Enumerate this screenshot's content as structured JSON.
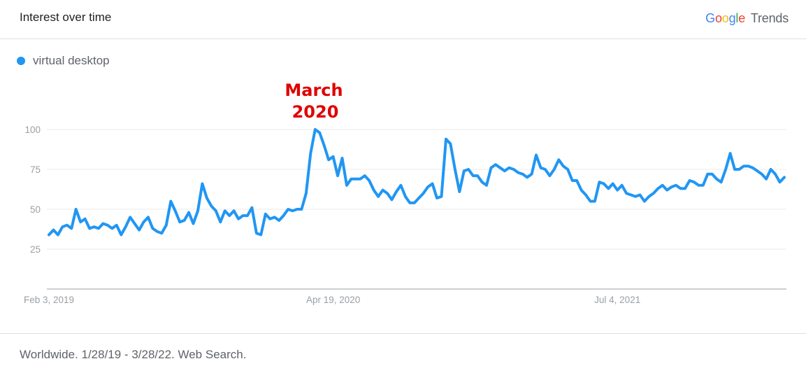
{
  "header": {
    "title": "Interest over time",
    "brand_google": [
      "G",
      "o",
      "o",
      "g",
      "l",
      "e"
    ],
    "brand_colors": [
      "#4285f4",
      "#ea4335",
      "#fbbc05",
      "#4285f4",
      "#34a853",
      "#ea4335"
    ],
    "brand_trends": "Trends"
  },
  "legend": {
    "label": "virtual desktop",
    "color": "#2196f3"
  },
  "annotation": {
    "line1": "March",
    "line2": "2020",
    "color": "#e00000"
  },
  "footer": {
    "text": "Worldwide. 1/28/19 - 3/28/22. Web Search."
  },
  "chart_data": {
    "type": "line",
    "xlabel": "",
    "ylabel": "",
    "ylim": [
      0,
      100
    ],
    "y_ticks": [
      25,
      50,
      75,
      100
    ],
    "x_ticks": [
      "Feb 3, 2019",
      "Apr 19, 2020",
      "Jul 4, 2021"
    ],
    "x_tick_index": [
      0,
      63,
      126
    ],
    "grid": true,
    "legend_position": "top-left",
    "series": [
      {
        "name": "virtual desktop",
        "color": "#2196f3",
        "values": [
          34,
          37,
          34,
          39,
          40,
          38,
          50,
          42,
          44,
          38,
          39,
          38,
          41,
          40,
          38,
          40,
          34,
          39,
          45,
          41,
          37,
          42,
          45,
          38,
          36,
          35,
          40,
          55,
          49,
          42,
          43,
          48,
          41,
          49,
          66,
          57,
          52,
          49,
          42,
          49,
          46,
          49,
          44,
          46,
          46,
          51,
          35,
          34,
          47,
          44,
          45,
          43,
          46,
          50,
          49,
          50,
          50,
          60,
          85,
          100,
          98,
          90,
          81,
          83,
          71,
          82,
          65,
          69,
          69,
          69,
          71,
          68,
          62,
          58,
          62,
          60,
          56,
          61,
          65,
          58,
          54,
          54,
          57,
          60,
          64,
          66,
          57,
          58,
          94,
          91,
          75,
          61,
          74,
          75,
          71,
          71,
          67,
          65,
          76,
          78,
          76,
          74,
          76,
          75,
          73,
          72,
          70,
          72,
          84,
          76,
          75,
          71,
          75,
          81,
          77,
          75,
          68,
          68,
          62,
          59,
          55,
          55,
          67,
          66,
          63,
          66,
          62,
          65,
          60,
          59,
          58,
          59,
          55,
          58,
          60,
          63,
          65,
          62,
          64,
          65,
          63,
          63,
          68,
          67,
          65,
          65,
          72,
          72,
          69,
          67,
          75,
          85,
          75,
          75,
          77,
          77,
          76,
          74,
          72,
          69,
          75,
          72,
          67,
          70
        ]
      }
    ]
  }
}
